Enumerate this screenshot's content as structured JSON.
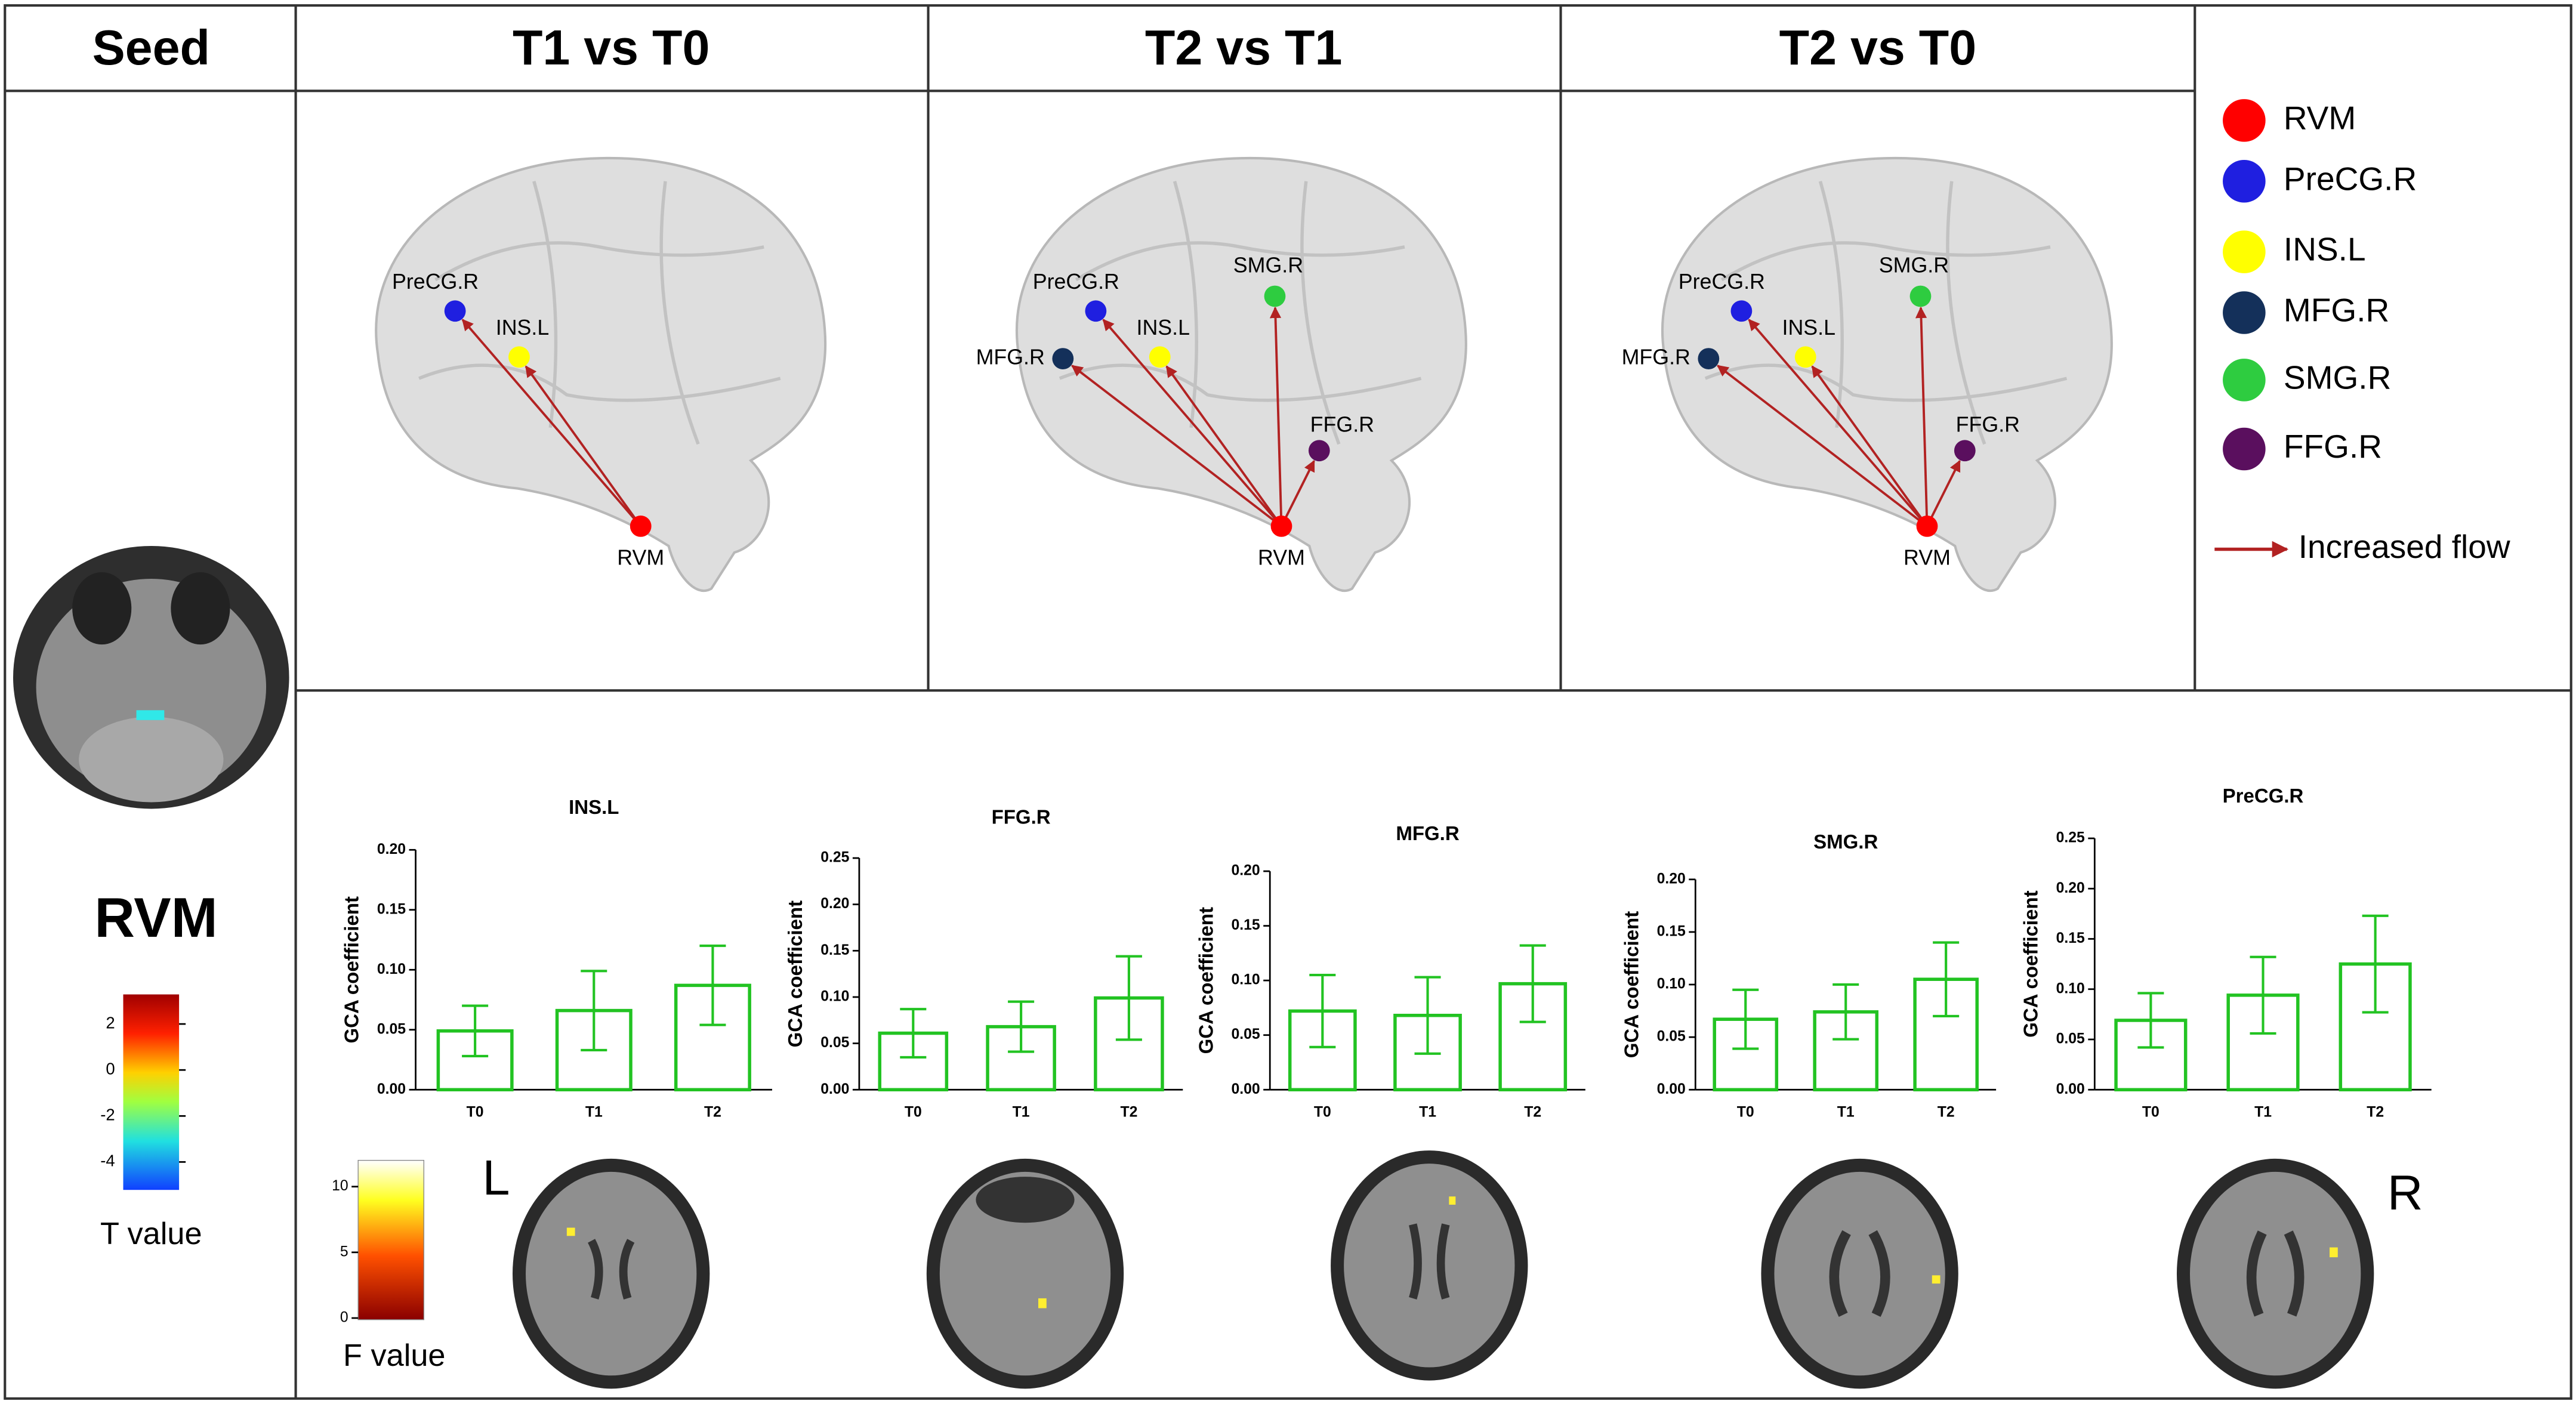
{
  "headers": [
    "Seed",
    "T1 vs T0",
    "T2 vs T1",
    "T2 vs T0"
  ],
  "seed": {
    "label": "RVM",
    "colorbar_label": "T value",
    "colorbar_ticks": [
      2,
      0,
      -2,
      -4
    ]
  },
  "networks": [
    {
      "nodes": [
        "PreCG.R",
        "INS.L",
        "RVM"
      ]
    },
    {
      "nodes": [
        "PreCG.R",
        "MFG.R",
        "INS.L",
        "SMG.R",
        "FFG.R",
        "RVM"
      ]
    },
    {
      "nodes": [
        "PreCG.R",
        "MFG.R",
        "INS.L",
        "SMG.R",
        "FFG.R",
        "RVM"
      ]
    }
  ],
  "legend": {
    "items": [
      {
        "name": "RVM",
        "color": "#ff0000"
      },
      {
        "name": "PreCG.R",
        "color": "#1f1fe0"
      },
      {
        "name": "INS.L",
        "color": "#ffff00"
      },
      {
        "name": "MFG.R",
        "color": "#14305a"
      },
      {
        "name": "SMG.R",
        "color": "#2ecc40"
      },
      {
        "name": "FFG.R",
        "color": "#5a0f5e"
      }
    ],
    "arrow_label": "Increased flow",
    "arrow_color": "#b22222"
  },
  "f_colorbar": {
    "label": "F value",
    "ticks": [
      10,
      5,
      0
    ]
  },
  "side_labels": [
    "L",
    "R"
  ],
  "chart_data": [
    {
      "type": "bar",
      "title": "INS.L",
      "y_label": "GCA coefficient",
      "categories": [
        "T0",
        "T1",
        "T2"
      ],
      "values": [
        0.049,
        0.066,
        0.087
      ],
      "errors": [
        0.021,
        0.033,
        0.033
      ],
      "color": "#22c322",
      "ylim": [
        0,
        0.2
      ],
      "yticks": [
        {
          "value": 0,
          "label": "0.00"
        },
        0.05,
        {
          "value": 0.1,
          "label": "0.10"
        },
        0.15,
        {
          "value": 0.2,
          "label": "0.20"
        }
      ]
    },
    {
      "type": "bar",
      "title": "FFG.R",
      "y_label": "GCA coefficient",
      "categories": [
        "T0",
        "T1",
        "T2"
      ],
      "values": [
        0.061,
        0.068,
        0.099
      ],
      "errors": [
        0.026,
        0.027,
        0.045
      ],
      "color": "#22c322",
      "ylim": [
        0,
        0.25
      ],
      "yticks": [
        {
          "value": 0,
          "label": "0.00"
        },
        0.05,
        {
          "value": 0.1,
          "label": "0.10"
        },
        0.15,
        {
          "value": 0.2,
          "label": "0.20"
        },
        0.25
      ]
    },
    {
      "type": "bar",
      "title": "MFG.R",
      "y_label": "GCA coefficient",
      "categories": [
        "T0",
        "T1",
        "T2"
      ],
      "values": [
        0.072,
        0.068,
        0.097
      ],
      "errors": [
        0.033,
        0.035,
        0.035
      ],
      "color": "#22c322",
      "ylim": [
        0,
        0.2
      ],
      "yticks": [
        {
          "value": 0,
          "label": "0.00"
        },
        0.05,
        {
          "value": 0.1,
          "label": "0.10"
        },
        0.15,
        {
          "value": 0.2,
          "label": "0.20"
        }
      ]
    },
    {
      "type": "bar",
      "title": "SMG.R",
      "y_label": "GCA coefficient",
      "categories": [
        "T0",
        "T1",
        "T2"
      ],
      "values": [
        0.067,
        0.074,
        0.105
      ],
      "errors": [
        0.028,
        0.026,
        0.035
      ],
      "color": "#22c322",
      "ylim": [
        0,
        0.2
      ],
      "yticks": [
        {
          "value": 0,
          "label": "0.00"
        },
        0.05,
        {
          "value": 0.1,
          "label": "0.10"
        },
        0.15,
        {
          "value": 0.2,
          "label": "0.20"
        }
      ]
    },
    {
      "type": "bar",
      "title": "PreCG.R",
      "y_label": "GCA coefficient",
      "categories": [
        "T0",
        "T1",
        "T2"
      ],
      "values": [
        0.069,
        0.094,
        0.125
      ],
      "errors": [
        0.027,
        0.038,
        0.048
      ],
      "color": "#22c322",
      "ylim": [
        0,
        0.25
      ],
      "yticks": [
        {
          "value": 0,
          "label": "0.00"
        },
        0.05,
        {
          "value": 0.1,
          "label": "0.10"
        },
        0.15,
        {
          "value": 0.2,
          "label": "0.20"
        },
        0.25
      ]
    }
  ]
}
